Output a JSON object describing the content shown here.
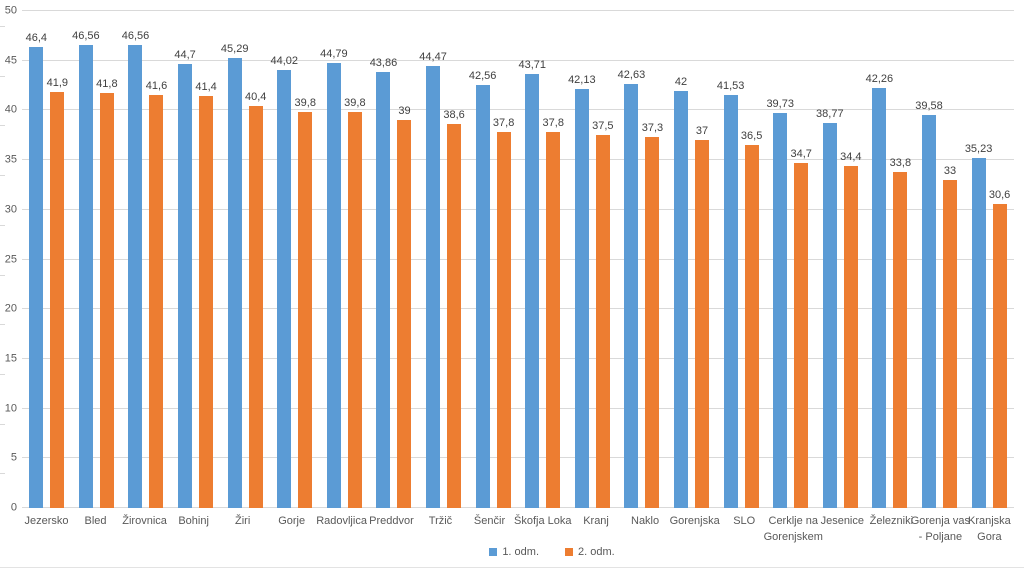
{
  "chart_data": {
    "type": "bar",
    "title": "",
    "xlabel": "",
    "ylabel": "",
    "grid": true,
    "legend_position": "bottom",
    "y_axis": {
      "min": 0,
      "max": 50,
      "step": 5,
      "tick_labels": [
        "0",
        "5",
        "10",
        "15",
        "20",
        "25",
        "30",
        "35",
        "40",
        "45",
        "50"
      ]
    },
    "categories": [
      "Jezersko",
      "Bled",
      "Žirovnica",
      "Bohinj",
      "Žiri",
      "Gorje",
      "Radovljica",
      "Preddvor",
      "Tržič",
      "Šenčir",
      "Škofja Loka",
      "Kranj",
      "Naklo",
      "Gorenjska",
      "SLO",
      "Cerklje na Gorenjskem",
      "Jesenice",
      "Železniki",
      "Gorenja vas - Poljane",
      "Kranjska Gora"
    ],
    "series": [
      {
        "name": "1. odm.",
        "color": "#5B9BD5",
        "values": [
          46.4,
          46.56,
          46.56,
          44.7,
          45.29,
          44.02,
          44.79,
          43.86,
          44.47,
          42.56,
          43.71,
          42.13,
          42.63,
          42,
          41.53,
          39.73,
          38.77,
          42.26,
          39.58,
          35.23
        ],
        "labels": [
          "46,4",
          "46,56",
          "46,56",
          "44,7",
          "45,29",
          "44,02",
          "44,79",
          "43,86",
          "44,47",
          "42,56",
          "43,71",
          "42,13",
          "42,63",
          "42",
          "41,53",
          "39,73",
          "38,77",
          "42,26",
          "39,58",
          "35,23"
        ]
      },
      {
        "name": "2. odm.",
        "color": "#ED7D31",
        "values": [
          41.9,
          41.8,
          41.6,
          41.4,
          40.4,
          39.8,
          39.8,
          39,
          38.6,
          37.8,
          37.8,
          37.5,
          37.3,
          37,
          36.5,
          34.7,
          34.4,
          33.8,
          33,
          30.6
        ],
        "labels": [
          "41,9",
          "41,8",
          "41,6",
          "41,4",
          "40,4",
          "39,8",
          "39,8",
          "39",
          "38,6",
          "37,8",
          "37,8",
          "37,5",
          "37,3",
          "37",
          "36,5",
          "34,7",
          "34,4",
          "33,8",
          "33",
          "30,6"
        ]
      }
    ],
    "colors": {
      "gridline": "#d9d9d9",
      "axis_text": "#595959",
      "value_label_text": "#404040"
    }
  }
}
